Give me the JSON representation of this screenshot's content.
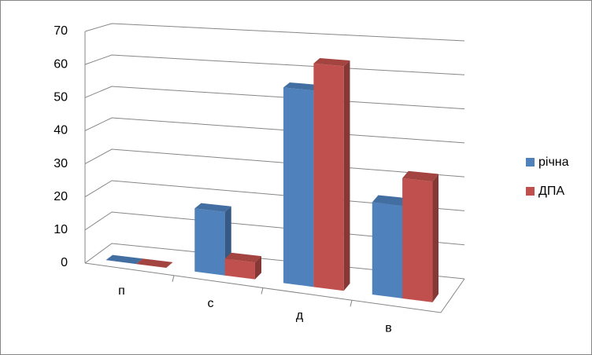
{
  "chart_data": {
    "type": "bar3d",
    "categories": [
      "п",
      "с",
      "д",
      "в"
    ],
    "series": [
      {
        "name": "річна",
        "color": "#4f81bd",
        "values": [
          0,
          19,
          58,
          27
        ]
      },
      {
        "name": "ДПА",
        "color": "#c0504d",
        "values": [
          0,
          5,
          66,
          35
        ]
      }
    ],
    "ylim": [
      0,
      70
    ],
    "yticks": [
      0,
      10,
      20,
      30,
      40,
      50,
      60,
      70
    ],
    "grid": true,
    "legend": "right"
  }
}
